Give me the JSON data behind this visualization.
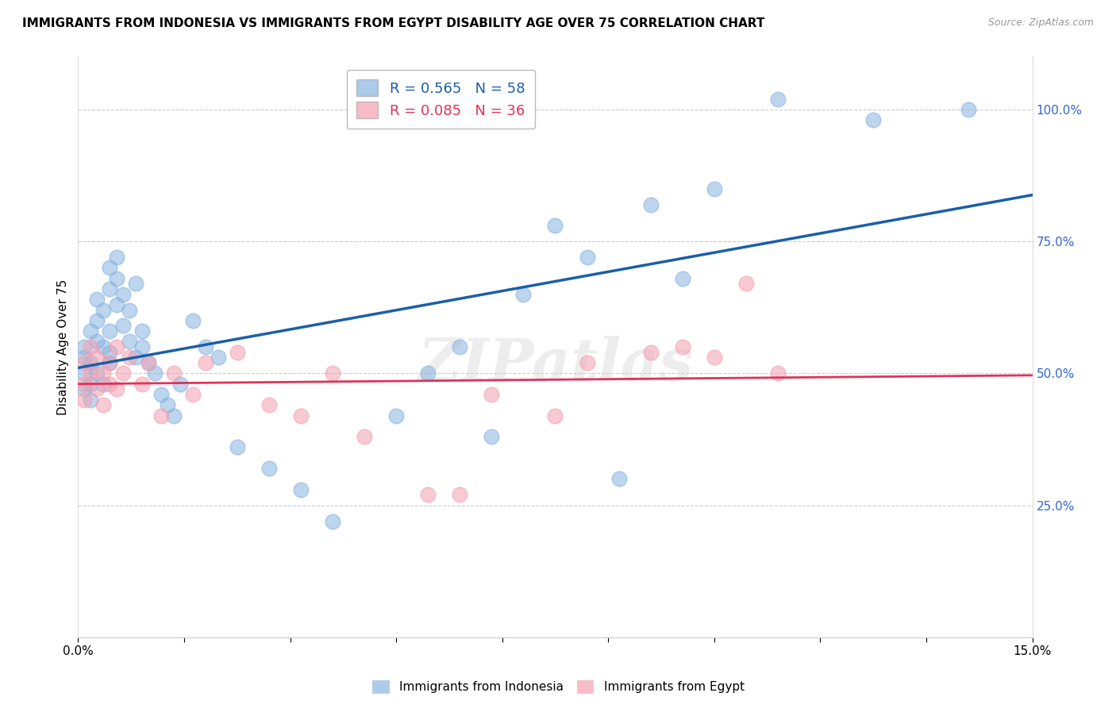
{
  "title": "IMMIGRANTS FROM INDONESIA VS IMMIGRANTS FROM EGYPT DISABILITY AGE OVER 75 CORRELATION CHART",
  "source": "Source: ZipAtlas.com",
  "ylabel": "Disability Age Over 75",
  "right_yticks": [
    25.0,
    50.0,
    75.0,
    100.0
  ],
  "legend_indonesia": "R = 0.565   N = 58",
  "legend_egypt": "R = 0.085   N = 36",
  "legend_label_indonesia": "Immigrants from Indonesia",
  "legend_label_egypt": "Immigrants from Egypt",
  "indonesia_color": "#89b4e0",
  "egypt_color": "#f4a0b0",
  "indonesia_line_color": "#1a5fa8",
  "egypt_line_color": "#e0325a",
  "watermark": "ZIPatlas",
  "indonesia_x": [
    0.001,
    0.001,
    0.001,
    0.001,
    0.002,
    0.002,
    0.002,
    0.002,
    0.003,
    0.003,
    0.003,
    0.003,
    0.004,
    0.004,
    0.004,
    0.005,
    0.005,
    0.005,
    0.005,
    0.005,
    0.006,
    0.006,
    0.006,
    0.007,
    0.007,
    0.008,
    0.008,
    0.009,
    0.009,
    0.01,
    0.01,
    0.011,
    0.012,
    0.013,
    0.014,
    0.015,
    0.016,
    0.018,
    0.02,
    0.022,
    0.025,
    0.03,
    0.035,
    0.04,
    0.05,
    0.055,
    0.06,
    0.065,
    0.07,
    0.075,
    0.08,
    0.085,
    0.09,
    0.095,
    0.1,
    0.11,
    0.125,
    0.14
  ],
  "indonesia_y": [
    0.5,
    0.53,
    0.47,
    0.55,
    0.52,
    0.48,
    0.58,
    0.45,
    0.6,
    0.56,
    0.5,
    0.64,
    0.55,
    0.62,
    0.48,
    0.66,
    0.58,
    0.52,
    0.7,
    0.54,
    0.63,
    0.68,
    0.72,
    0.65,
    0.59,
    0.56,
    0.62,
    0.53,
    0.67,
    0.58,
    0.55,
    0.52,
    0.5,
    0.46,
    0.44,
    0.42,
    0.48,
    0.6,
    0.55,
    0.53,
    0.36,
    0.32,
    0.28,
    0.22,
    0.42,
    0.5,
    0.55,
    0.38,
    0.65,
    0.78,
    0.72,
    0.3,
    0.82,
    0.68,
    0.85,
    1.02,
    0.98,
    1.0
  ],
  "egypt_x": [
    0.001,
    0.001,
    0.001,
    0.002,
    0.002,
    0.003,
    0.003,
    0.004,
    0.004,
    0.005,
    0.005,
    0.006,
    0.006,
    0.007,
    0.008,
    0.01,
    0.011,
    0.013,
    0.015,
    0.018,
    0.02,
    0.025,
    0.03,
    0.035,
    0.04,
    0.045,
    0.055,
    0.06,
    0.065,
    0.075,
    0.08,
    0.09,
    0.095,
    0.1,
    0.105,
    0.11
  ],
  "egypt_y": [
    0.48,
    0.52,
    0.45,
    0.5,
    0.55,
    0.47,
    0.53,
    0.5,
    0.44,
    0.52,
    0.48,
    0.55,
    0.47,
    0.5,
    0.53,
    0.48,
    0.52,
    0.42,
    0.5,
    0.46,
    0.52,
    0.54,
    0.44,
    0.42,
    0.5,
    0.38,
    0.27,
    0.27,
    0.46,
    0.42,
    0.52,
    0.54,
    0.55,
    0.53,
    0.67,
    0.5
  ],
  "xlim": [
    0.0,
    0.15
  ],
  "ylim": [
    0.0,
    1.1
  ],
  "fig_width": 14.06,
  "fig_height": 8.92,
  "dpi": 100
}
